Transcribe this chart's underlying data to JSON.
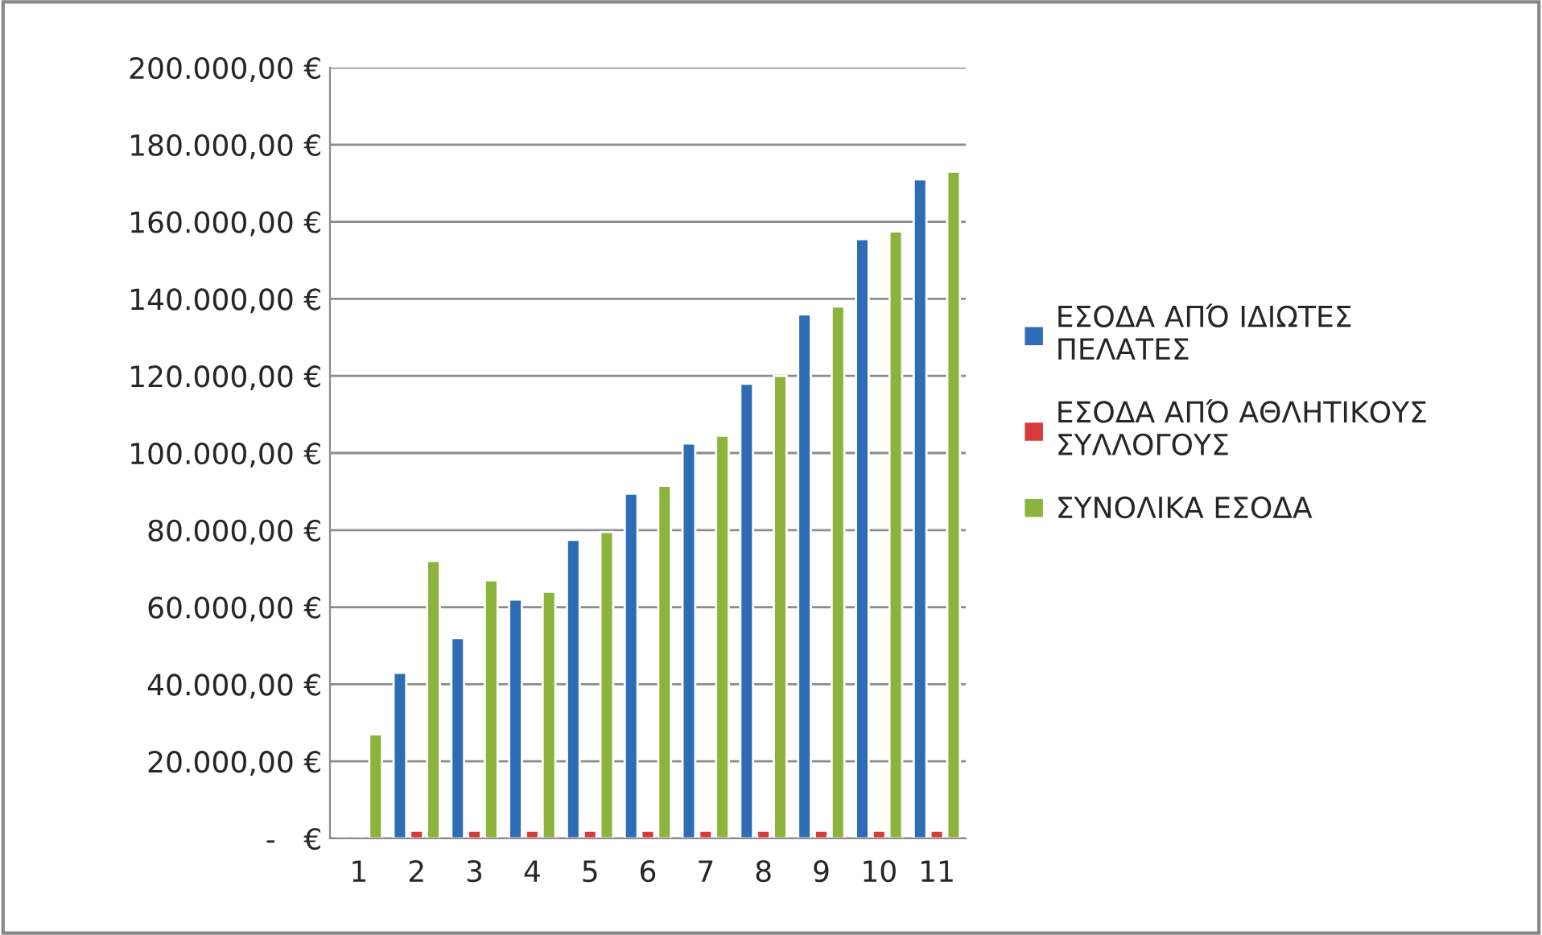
{
  "chart_data": {
    "type": "bar",
    "categories": [
      "1",
      "2",
      "3",
      "4",
      "5",
      "6",
      "7",
      "8",
      "9",
      "10",
      "11"
    ],
    "series": [
      {
        "name": "ΕΣΟΔΑ ΑΠΌ ΙΔΙΩΤΕΣ ΠΕΛΑΤΕΣ",
        "color": "#2e6db5",
        "values": [
          null,
          43000,
          52000,
          62000,
          77500,
          89500,
          102500,
          118000,
          136000,
          155500,
          171000
        ]
      },
      {
        "name": "ΕΣΟΔΑ ΑΠΌ ΑΘΛΗΤΙΚΟΥΣ ΣΥΛΛΟΓΟΥΣ",
        "color": "#d83a3a",
        "values": [
          null,
          2000,
          2000,
          2000,
          2000,
          2000,
          2000,
          2000,
          2000,
          2000,
          2000
        ]
      },
      {
        "name": "ΣΥΝΟΛΙΚΑ ΕΣΟΔΑ",
        "color": "#8cb43c",
        "values": [
          27000,
          72000,
          67000,
          64000,
          79500,
          91500,
          104500,
          120000,
          138000,
          157500,
          173000
        ]
      }
    ],
    "ylim": [
      0,
      200000
    ],
    "yticks": [
      {
        "value": 0,
        "label": "-   €"
      },
      {
        "value": 20000,
        "label": "20.000,00 €"
      },
      {
        "value": 40000,
        "label": "40.000,00 €"
      },
      {
        "value": 60000,
        "label": "60.000,00 €"
      },
      {
        "value": 80000,
        "label": "80.000,00 €"
      },
      {
        "value": 100000,
        "label": "100.000,00 €"
      },
      {
        "value": 120000,
        "label": "120.000,00 €"
      },
      {
        "value": 140000,
        "label": "140.000,00 €"
      },
      {
        "value": 160000,
        "label": "160.000,00 €"
      },
      {
        "value": 180000,
        "label": "180.000,00 €"
      },
      {
        "value": 200000,
        "label": "200.000,00 €"
      }
    ],
    "grid": "y",
    "legend": "right"
  }
}
